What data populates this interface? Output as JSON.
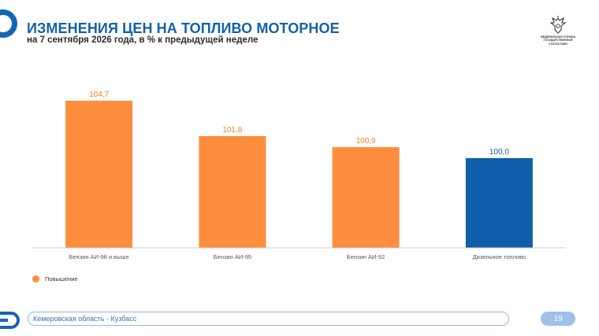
{
  "header": {
    "title": "ИЗМЕНЕНИЯ ЦЕН НА ТОПЛИВО МОТОРНОЕ",
    "subtitle": "на 7 сентября 2026 года, в % к предыдущей неделе",
    "agency_lines": [
      "ФЕДЕРАЛЬНАЯ СЛУЖБА",
      "ГОСУДАРСТВЕННОЙ",
      "СТАТИСТИКИ"
    ]
  },
  "colors": {
    "accent": "#1461a8",
    "increase": "#fe8d3d",
    "neutral": "#0f5eaa"
  },
  "chart_data": {
    "type": "bar",
    "categories": [
      "Бензин АИ-98 и выше",
      "Бензин АИ-95",
      "Бензин АИ-92",
      "Дизельное топливо"
    ],
    "values": [
      104.7,
      101.8,
      100.9,
      100.0
    ],
    "value_labels": [
      "104,7",
      "101,8",
      "100,9",
      "100,0"
    ],
    "bar_colors": [
      "#fe8d3d",
      "#fe8d3d",
      "#fe8d3d",
      "#0f5eaa"
    ],
    "label_colors": [
      "#f07f2c",
      "#f07f2c",
      "#f07f2c",
      "#1461a8"
    ],
    "legend": [
      {
        "label": "Повышение",
        "color": "#fe8d3d"
      }
    ],
    "legend_position": "bottom-left",
    "ylim": [
      92.65,
      104.7
    ],
    "grid": false
  },
  "footer": {
    "region": "Кемеровская область - Кузбасс",
    "page_number": "19"
  }
}
